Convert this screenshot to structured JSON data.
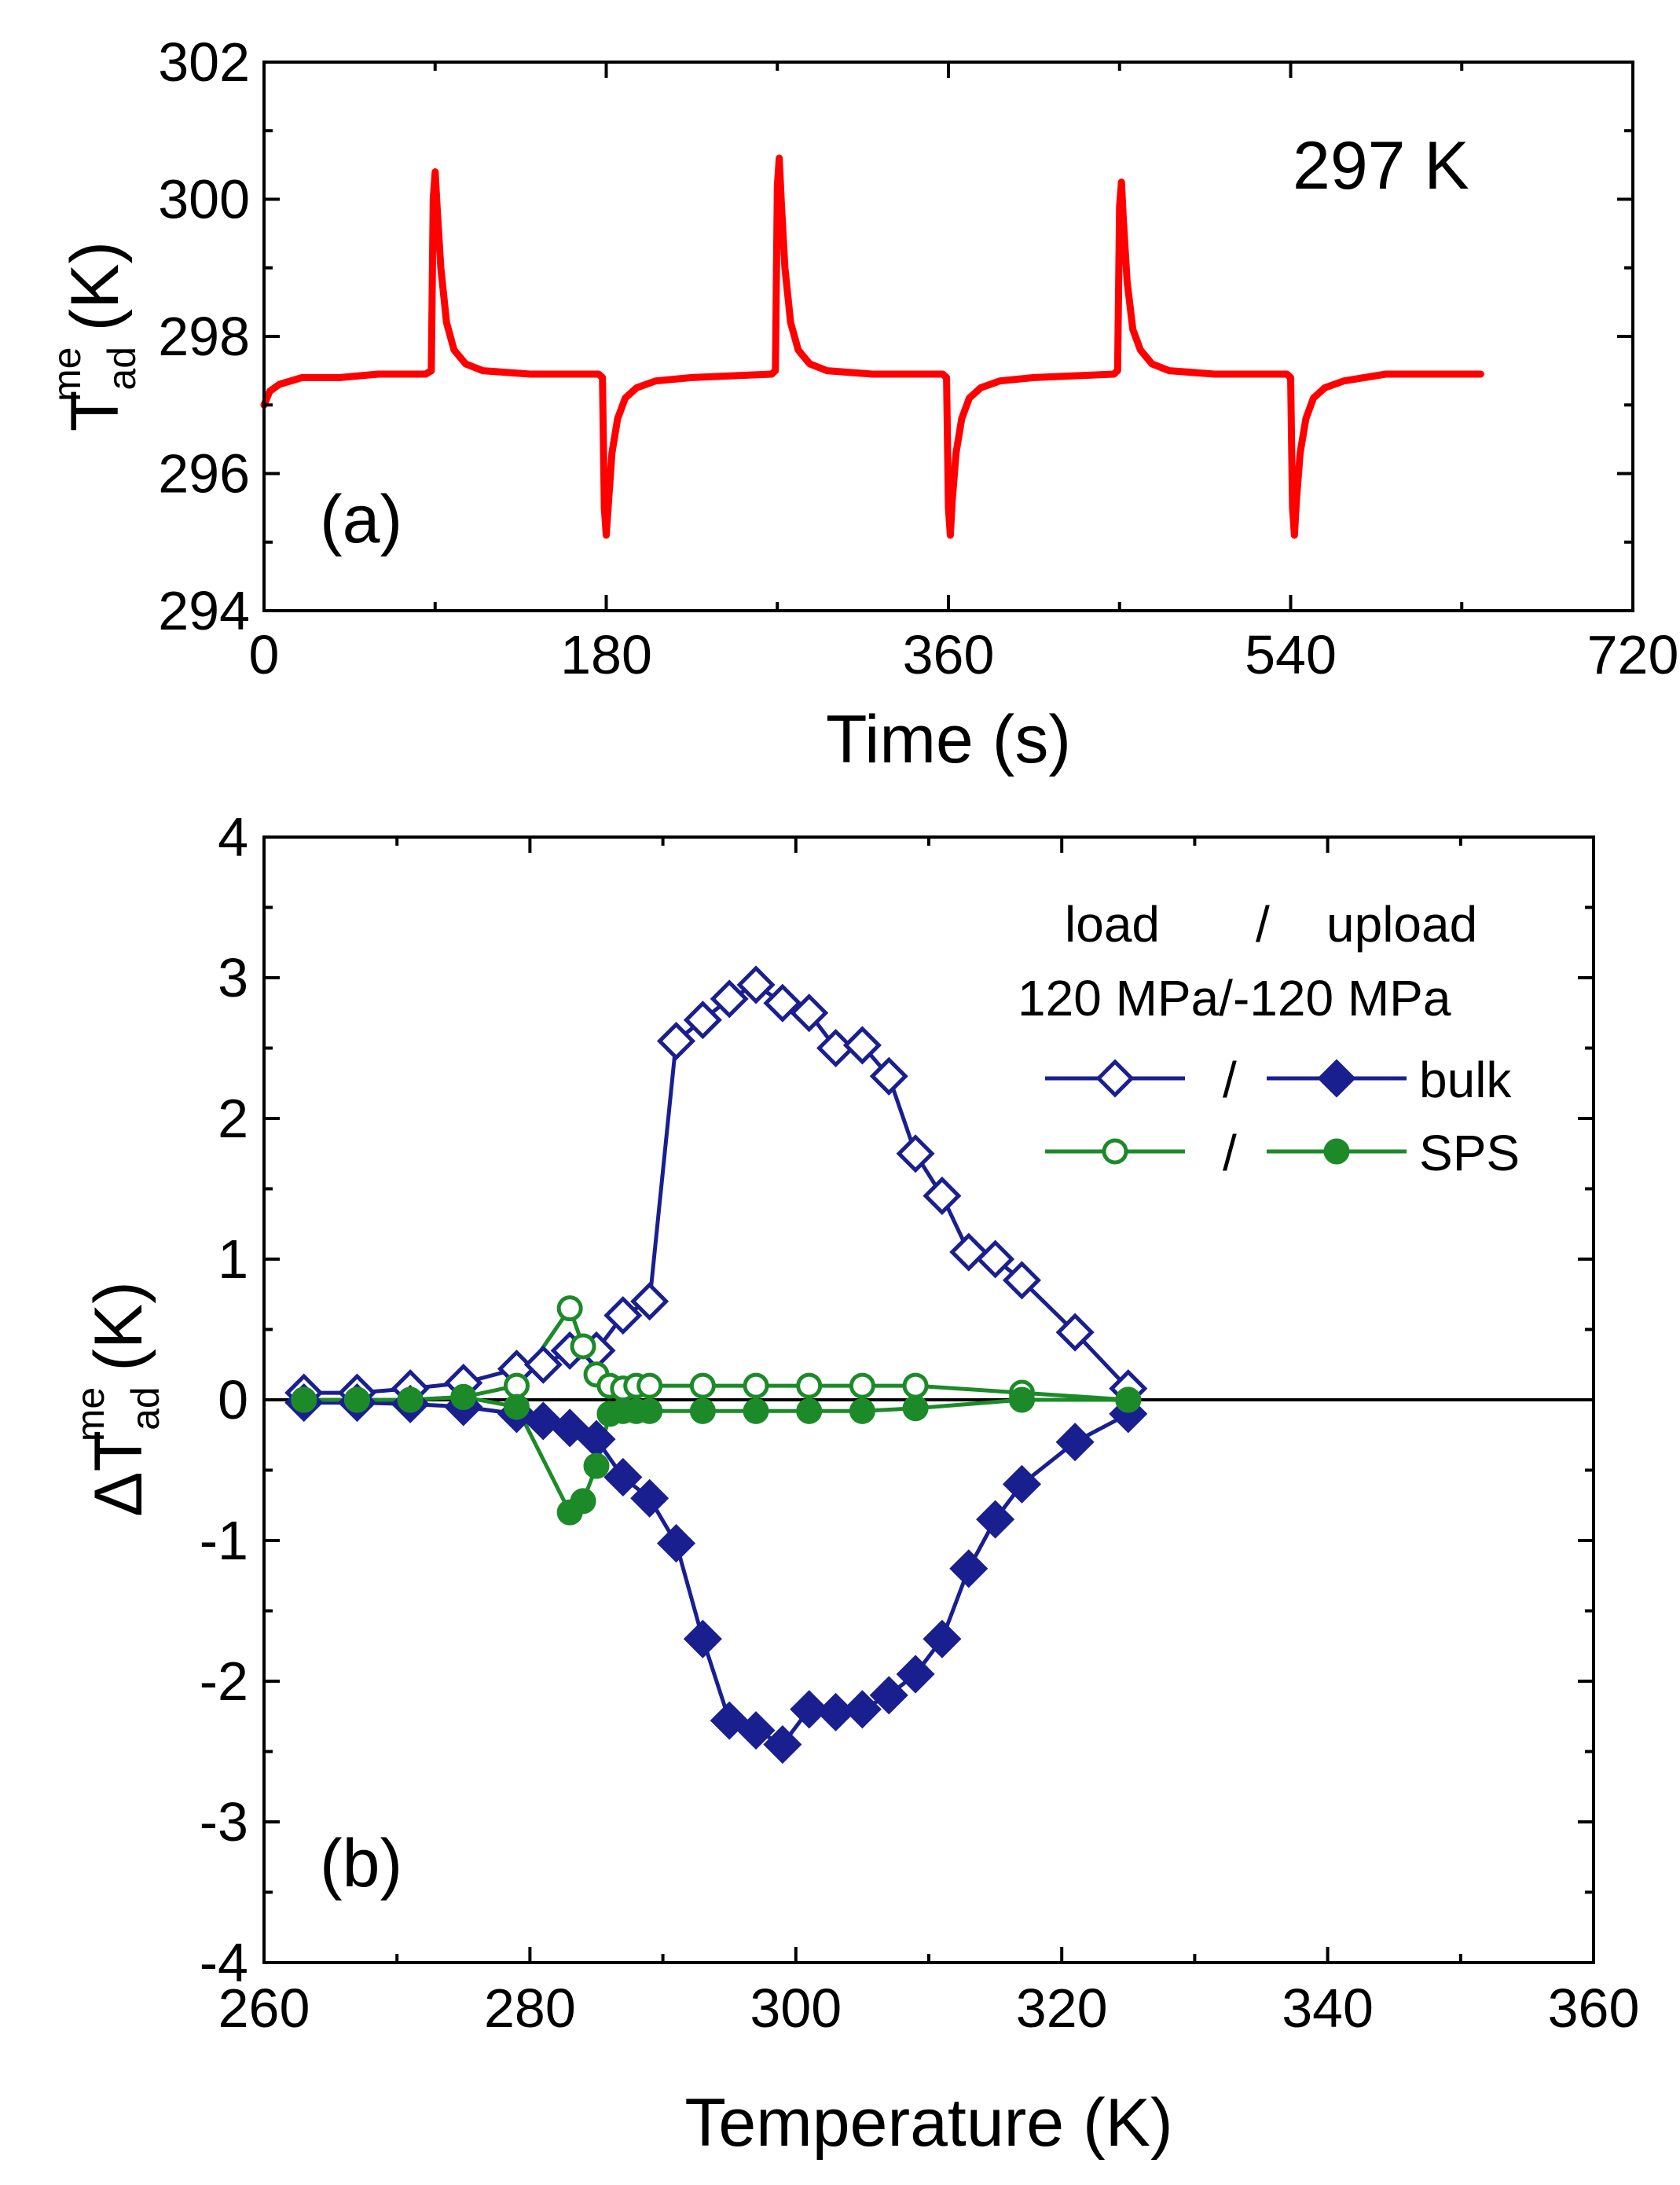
{
  "chart_data": [
    {
      "panel": "a",
      "type": "line",
      "panel_label": "(a)",
      "annotation": "297 K",
      "xlabel": "Time (s)",
      "ylabel": "T",
      "ylabel_sup": "me",
      "ylabel_sub": "ad",
      "ylabel_unit": "(K)",
      "xlim": [
        0,
        720
      ],
      "ylim": [
        294,
        302
      ],
      "xticks": [
        0,
        180,
        360,
        540,
        720
      ],
      "yticks": [
        294,
        296,
        298,
        300,
        302
      ],
      "color": "#ff0000",
      "series": [
        {
          "name": "temperature trace",
          "points": [
            [
              0,
              297.0
            ],
            [
              3,
              297.2
            ],
            [
              8,
              297.3
            ],
            [
              20,
              297.4
            ],
            [
              40,
              297.4
            ],
            [
              60,
              297.45
            ],
            [
              85,
              297.45
            ],
            [
              88,
              297.5
            ],
            [
              89,
              300.0
            ],
            [
              90,
              300.4
            ],
            [
              91,
              299.9
            ],
            [
              93,
              299.0
            ],
            [
              96,
              298.2
            ],
            [
              100,
              297.8
            ],
            [
              106,
              297.6
            ],
            [
              115,
              297.5
            ],
            [
              140,
              297.45
            ],
            [
              176,
              297.45
            ],
            [
              178,
              297.4
            ],
            [
              179,
              295.5
            ],
            [
              180,
              295.1
            ],
            [
              181,
              295.5
            ],
            [
              183,
              296.3
            ],
            [
              186,
              296.8
            ],
            [
              190,
              297.1
            ],
            [
              196,
              297.25
            ],
            [
              206,
              297.35
            ],
            [
              225,
              297.4
            ],
            [
              267,
              297.45
            ],
            [
              269,
              297.5
            ],
            [
              270,
              300.2
            ],
            [
              271,
              300.6
            ],
            [
              272,
              300.0
            ],
            [
              274,
              299.0
            ],
            [
              277,
              298.2
            ],
            [
              281,
              297.8
            ],
            [
              287,
              297.6
            ],
            [
              296,
              297.5
            ],
            [
              320,
              297.45
            ],
            [
              357,
              297.45
            ],
            [
              359,
              297.4
            ],
            [
              360,
              295.5
            ],
            [
              361,
              295.1
            ],
            [
              362,
              295.6
            ],
            [
              364,
              296.3
            ],
            [
              367,
              296.8
            ],
            [
              371,
              297.1
            ],
            [
              377,
              297.25
            ],
            [
              387,
              297.35
            ],
            [
              405,
              297.4
            ],
            [
              447,
              297.45
            ],
            [
              449,
              297.5
            ],
            [
              450,
              299.9
            ],
            [
              451,
              300.25
            ],
            [
              452,
              299.7
            ],
            [
              454,
              298.8
            ],
            [
              457,
              298.1
            ],
            [
              461,
              297.8
            ],
            [
              467,
              297.6
            ],
            [
              476,
              297.5
            ],
            [
              500,
              297.45
            ],
            [
              538,
              297.45
            ],
            [
              540,
              297.4
            ],
            [
              541,
              295.5
            ],
            [
              542,
              295.1
            ],
            [
              543,
              295.6
            ],
            [
              545,
              296.3
            ],
            [
              548,
              296.8
            ],
            [
              552,
              297.1
            ],
            [
              558,
              297.25
            ],
            [
              568,
              297.35
            ],
            [
              590,
              297.45
            ],
            [
              640,
              297.45
            ]
          ]
        }
      ]
    },
    {
      "panel": "b",
      "type": "line",
      "panel_label": "(b)",
      "xlabel": "Temperature (K)",
      "ylabel": "ΔT",
      "ylabel_sup": "me",
      "ylabel_sub": "ad",
      "ylabel_unit": "(K)",
      "xlim": [
        260,
        360
      ],
      "ylim": [
        -4,
        4
      ],
      "xticks": [
        260,
        280,
        300,
        320,
        340,
        360
      ],
      "yticks": [
        -4,
        -3,
        -2,
        -1,
        0,
        1,
        2,
        3,
        4
      ],
      "zero_line": true,
      "legend": {
        "header": [
          "load",
          "/",
          "upload"
        ],
        "subheader": "120 MPa/-120 MPa",
        "separator": "/",
        "position": "top-right",
        "entries": [
          "bulk",
          "SPS"
        ]
      },
      "series": [
        {
          "name": "bulk load (120 MPa)",
          "color": "#1a1f8f",
          "marker": "diamond-open",
          "points": [
            [
              263,
              0.05
            ],
            [
              267,
              0.05
            ],
            [
              271,
              0.08
            ],
            [
              275,
              0.12
            ],
            [
              279,
              0.22
            ],
            [
              281,
              0.25
            ],
            [
              283,
              0.35
            ],
            [
              285,
              0.35
            ],
            [
              287,
              0.6
            ],
            [
              289,
              0.7
            ],
            [
              291,
              2.55
            ],
            [
              293,
              2.7
            ],
            [
              295,
              2.85
            ],
            [
              297,
              2.95
            ],
            [
              299,
              2.82
            ],
            [
              301,
              2.75
            ],
            [
              303,
              2.5
            ],
            [
              305,
              2.52
            ],
            [
              307,
              2.3
            ],
            [
              309,
              1.75
            ],
            [
              311,
              1.45
            ],
            [
              313,
              1.05
            ],
            [
              315,
              1.0
            ],
            [
              317,
              0.85
            ],
            [
              321,
              0.48
            ],
            [
              325,
              0.08
            ]
          ]
        },
        {
          "name": "bulk upload (-120 MPa)",
          "color": "#1a1f8f",
          "marker": "diamond-filled",
          "points": [
            [
              263,
              -0.02
            ],
            [
              267,
              -0.02
            ],
            [
              271,
              -0.03
            ],
            [
              275,
              -0.05
            ],
            [
              279,
              -0.1
            ],
            [
              281,
              -0.15
            ],
            [
              283,
              -0.2
            ],
            [
              285,
              -0.28
            ],
            [
              287,
              -0.55
            ],
            [
              289,
              -0.7
            ],
            [
              291,
              -1.02
            ],
            [
              293,
              -1.7
            ],
            [
              295,
              -2.28
            ],
            [
              297,
              -2.35
            ],
            [
              299,
              -2.45
            ],
            [
              301,
              -2.2
            ],
            [
              303,
              -2.22
            ],
            [
              305,
              -2.2
            ],
            [
              307,
              -2.1
            ],
            [
              309,
              -1.95
            ],
            [
              311,
              -1.7
            ],
            [
              313,
              -1.2
            ],
            [
              315,
              -0.85
            ],
            [
              317,
              -0.6
            ],
            [
              321,
              -0.3
            ],
            [
              325,
              -0.1
            ]
          ]
        },
        {
          "name": "SPS load (120 MPa)",
          "color": "#1d8a2a",
          "marker": "circle-open",
          "points": [
            [
              263,
              0.0
            ],
            [
              267,
              0.0
            ],
            [
              271,
              0.0
            ],
            [
              275,
              0.02
            ],
            [
              279,
              0.1
            ],
            [
              283,
              0.65
            ],
            [
              284,
              0.38
            ],
            [
              285,
              0.18
            ],
            [
              286,
              0.1
            ],
            [
              287,
              0.08
            ],
            [
              288,
              0.1
            ],
            [
              289,
              0.1
            ],
            [
              293,
              0.1
            ],
            [
              297,
              0.1
            ],
            [
              301,
              0.1
            ],
            [
              305,
              0.1
            ],
            [
              309,
              0.1
            ],
            [
              317,
              0.05
            ],
            [
              325,
              0.0
            ]
          ]
        },
        {
          "name": "SPS upload (-120 MPa)",
          "color": "#1d8a2a",
          "marker": "circle-filled",
          "points": [
            [
              263,
              0.0
            ],
            [
              267,
              0.0
            ],
            [
              271,
              0.0
            ],
            [
              275,
              0.02
            ],
            [
              279,
              -0.05
            ],
            [
              283,
              -0.8
            ],
            [
              284,
              -0.72
            ],
            [
              285,
              -0.47
            ],
            [
              286,
              -0.1
            ],
            [
              287,
              -0.08
            ],
            [
              288,
              -0.08
            ],
            [
              289,
              -0.08
            ],
            [
              293,
              -0.08
            ],
            [
              297,
              -0.08
            ],
            [
              301,
              -0.08
            ],
            [
              305,
              -0.08
            ],
            [
              309,
              -0.06
            ],
            [
              317,
              0.0
            ],
            [
              325,
              0.0
            ]
          ]
        }
      ]
    }
  ]
}
